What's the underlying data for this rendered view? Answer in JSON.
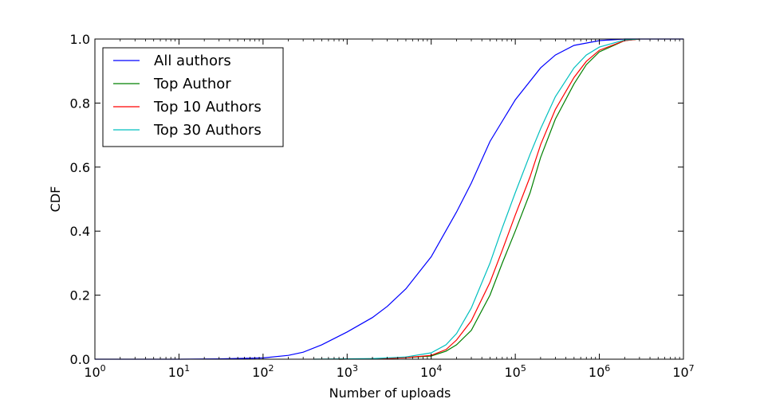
{
  "chart_data": {
    "type": "line",
    "title": "",
    "xlabel": "Number of uploads",
    "ylabel": "CDF",
    "x_scale": "log",
    "xlim": [
      1,
      10000000
    ],
    "ylim": [
      0.0,
      1.0
    ],
    "grid": false,
    "legend_position": "top-left",
    "x_ticks": [
      {
        "value": 1,
        "base": "10",
        "exp": "0"
      },
      {
        "value": 10,
        "base": "10",
        "exp": "1"
      },
      {
        "value": 100,
        "base": "10",
        "exp": "2"
      },
      {
        "value": 1000,
        "base": "10",
        "exp": "3"
      },
      {
        "value": 10000,
        "base": "10",
        "exp": "4"
      },
      {
        "value": 100000,
        "base": "10",
        "exp": "5"
      },
      {
        "value": 1000000,
        "base": "10",
        "exp": "6"
      },
      {
        "value": 10000000,
        "base": "10",
        "exp": "7"
      }
    ],
    "y_ticks": [
      {
        "value": 0.0,
        "label": "0.0"
      },
      {
        "value": 0.2,
        "label": "0.2"
      },
      {
        "value": 0.4,
        "label": "0.4"
      },
      {
        "value": 0.6,
        "label": "0.6"
      },
      {
        "value": 0.8,
        "label": "0.8"
      },
      {
        "value": 1.0,
        "label": "1.0"
      }
    ],
    "series": [
      {
        "name": "All authors",
        "color": "#0000ff",
        "points": [
          [
            1,
            0.0
          ],
          [
            10,
            0.0
          ],
          [
            30,
            0.001
          ],
          [
            100,
            0.004
          ],
          [
            200,
            0.012
          ],
          [
            300,
            0.022
          ],
          [
            500,
            0.045
          ],
          [
            1000,
            0.085
          ],
          [
            2000,
            0.13
          ],
          [
            3000,
            0.165
          ],
          [
            5000,
            0.22
          ],
          [
            10000,
            0.32
          ],
          [
            20000,
            0.46
          ],
          [
            30000,
            0.55
          ],
          [
            50000,
            0.68
          ],
          [
            100000,
            0.81
          ],
          [
            200000,
            0.91
          ],
          [
            300000,
            0.95
          ],
          [
            500000,
            0.98
          ],
          [
            1000000,
            0.995
          ],
          [
            2000000,
            1.0
          ],
          [
            10000000,
            1.0
          ]
        ]
      },
      {
        "name": "Top Author",
        "color": "#008000",
        "points": [
          [
            800,
            0.0
          ],
          [
            3000,
            0.002
          ],
          [
            5000,
            0.005
          ],
          [
            10000,
            0.01
          ],
          [
            15000,
            0.025
          ],
          [
            20000,
            0.045
          ],
          [
            30000,
            0.09
          ],
          [
            50000,
            0.2
          ],
          [
            70000,
            0.3
          ],
          [
            100000,
            0.4
          ],
          [
            150000,
            0.52
          ],
          [
            200000,
            0.63
          ],
          [
            300000,
            0.75
          ],
          [
            500000,
            0.86
          ],
          [
            700000,
            0.92
          ],
          [
            1000000,
            0.96
          ],
          [
            2000000,
            0.995
          ],
          [
            3000000,
            1.0
          ]
        ]
      },
      {
        "name": "Top 10 Authors",
        "color": "#ff0000",
        "points": [
          [
            800,
            0.0
          ],
          [
            3000,
            0.002
          ],
          [
            5000,
            0.005
          ],
          [
            10000,
            0.012
          ],
          [
            15000,
            0.03
          ],
          [
            20000,
            0.06
          ],
          [
            30000,
            0.12
          ],
          [
            50000,
            0.24
          ],
          [
            70000,
            0.34
          ],
          [
            100000,
            0.45
          ],
          [
            150000,
            0.57
          ],
          [
            200000,
            0.67
          ],
          [
            300000,
            0.78
          ],
          [
            500000,
            0.88
          ],
          [
            700000,
            0.93
          ],
          [
            1000000,
            0.965
          ],
          [
            2000000,
            0.995
          ],
          [
            3000000,
            1.0
          ]
        ]
      },
      {
        "name": "Top 30 Authors",
        "color": "#00bfbf",
        "points": [
          [
            400,
            0.0
          ],
          [
            2000,
            0.002
          ],
          [
            5000,
            0.007
          ],
          [
            10000,
            0.02
          ],
          [
            15000,
            0.045
          ],
          [
            20000,
            0.08
          ],
          [
            30000,
            0.16
          ],
          [
            50000,
            0.3
          ],
          [
            70000,
            0.41
          ],
          [
            100000,
            0.52
          ],
          [
            150000,
            0.64
          ],
          [
            200000,
            0.72
          ],
          [
            300000,
            0.82
          ],
          [
            500000,
            0.91
          ],
          [
            700000,
            0.95
          ],
          [
            1000000,
            0.975
          ],
          [
            2000000,
            0.997
          ],
          [
            3000000,
            1.0
          ]
        ]
      }
    ]
  }
}
